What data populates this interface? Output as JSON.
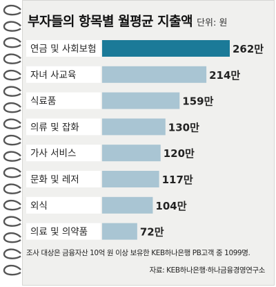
{
  "chart_data": {
    "type": "bar",
    "orientation": "horizontal",
    "title": "부자들의 항목별 월평균 지출액",
    "unit": "단위: 원",
    "categories": [
      "연금 및 사회보험",
      "자녀 사교육",
      "식료품",
      "의류 및 잡화",
      "가사 서비스",
      "문화 및 레저",
      "외식",
      "의료 및 의약품"
    ],
    "values": [
      262,
      214,
      159,
      130,
      120,
      117,
      104,
      72
    ],
    "value_labels": [
      "262만",
      "214만",
      "159만",
      "130만",
      "120만",
      "117만",
      "104만",
      "72만"
    ],
    "highlight_index": 0,
    "xlim": [
      0,
      262
    ],
    "grid": false
  },
  "colors": {
    "highlight_bar": "#1b7a98",
    "bar": "#a9c5d3",
    "card": "#f0f0ee",
    "label_box": "#ffffff"
  },
  "footnote": "조사 대상은 금융자산 10억 원 이상 보유한 KEB하나은행 PB고객 중 1099명.",
  "source": "자료: KEB하나은행·하나금융경영연구소"
}
